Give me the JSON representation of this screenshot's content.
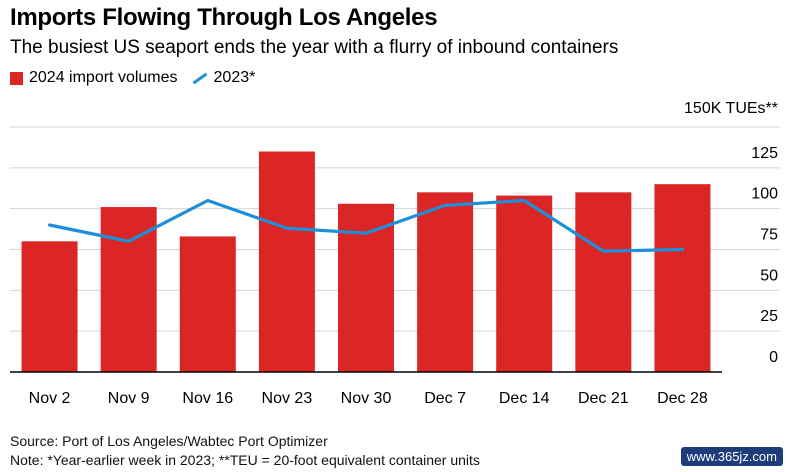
{
  "chart_data": {
    "type": "bar",
    "title": "Imports Flowing Through Los Angeles",
    "subtitle": "The busiest US seaport ends the year with a flurry of inbound containers",
    "categories": [
      "Nov 2",
      "Nov 9",
      "Nov 16",
      "Nov 23",
      "Nov 30",
      "Dec 7",
      "Dec 14",
      "Dec 21",
      "Dec 28"
    ],
    "series": [
      {
        "name": "2024 import volumes",
        "type": "bar",
        "color": "#dc2626",
        "values": [
          80,
          101,
          83,
          135,
          103,
          110,
          108,
          110,
          115
        ]
      },
      {
        "name": "2023*",
        "type": "line",
        "color": "#1c8fd9",
        "values": [
          90,
          80,
          105,
          88,
          85,
          102,
          105,
          74,
          75
        ]
      }
    ],
    "ylabel": "150K TUEs**",
    "yticks": [
      0,
      25,
      50,
      75,
      100,
      125
    ],
    "ylim": [
      0,
      150
    ],
    "grid": true,
    "legend_position": "top-left"
  },
  "source": "Source: Port of Los Angeles/Wabtec Port Optimizer",
  "note": "Note: *Year-earlier week in 2023; **TEU = 20-foot equivalent container units",
  "watermark": "www.365jz.com"
}
